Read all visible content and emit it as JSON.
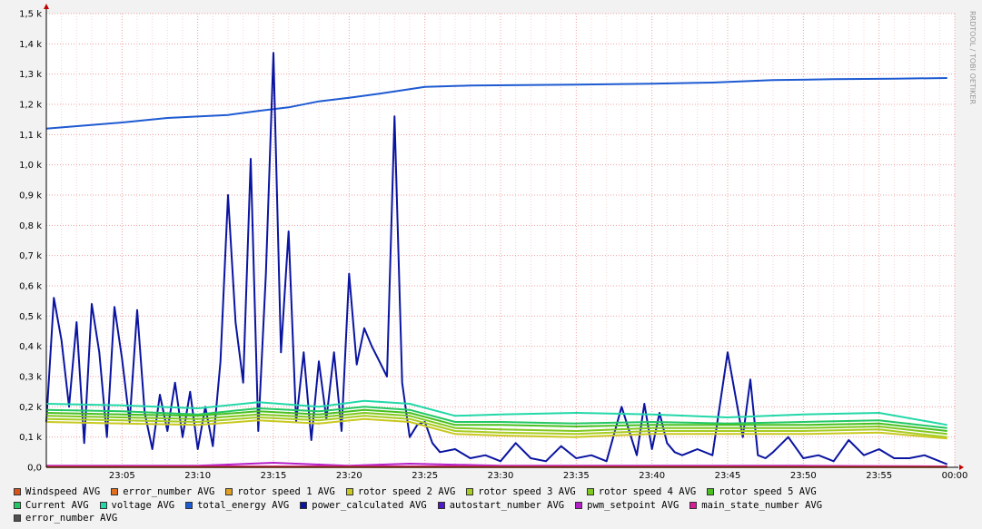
{
  "watermark": "RRDTOOL / TOBI OETIKER",
  "chart_data": {
    "type": "line",
    "title": "",
    "xlabel": "",
    "ylabel": "",
    "ylim": [
      0,
      1500
    ],
    "grid": true,
    "legend_position": "bottom",
    "y_ticks": [
      "0,0",
      "0,1 k",
      "0,2 k",
      "0,3 k",
      "0,4 k",
      "0,5 k",
      "0,6 k",
      "0,7 k",
      "0,8 k",
      "0,9 k",
      "1,0 k",
      "1,1 k",
      "1,2 k",
      "1,3 k",
      "1,4 k",
      "1,5 k"
    ],
    "x_ticks": [
      "23:05",
      "23:10",
      "23:15",
      "23:20",
      "23:25",
      "23:30",
      "23:35",
      "23:40",
      "23:45",
      "23:50",
      "23:55",
      "00:00"
    ],
    "x_range_minutes": [
      0,
      60
    ],
    "legend": [
      {
        "label": "Windspeed AVG",
        "color": "#d95319"
      },
      {
        "label": "error_number AVG",
        "color": "#e07020"
      },
      {
        "label": "rotor speed 1 AVG",
        "color": "#e0a020"
      },
      {
        "label": "rotor speed 2 AVG",
        "color": "#c8c820"
      },
      {
        "label": "rotor speed 3 AVG",
        "color": "#a8cc22"
      },
      {
        "label": "rotor speed 4 AVG",
        "color": "#80c820"
      },
      {
        "label": "rotor speed 5 AVG",
        "color": "#48c020"
      },
      {
        "label": "Current AVG",
        "color": "#22c864"
      },
      {
        "label": "voltage AVG",
        "color": "#22d8a8"
      },
      {
        "label": "total_energy AVG",
        "color": "#1e5ad2"
      },
      {
        "label": "power_calculated AVG",
        "color": "#0a14a0"
      },
      {
        "label": "autostart_number AVG",
        "color": "#5018c8"
      },
      {
        "label": "pwm_setpoint AVG",
        "color": "#b420c8"
      },
      {
        "label": "main_state_number AVG",
        "color": "#d81e96"
      },
      {
        "label": "error_number AVG",
        "color": "#505050"
      }
    ],
    "series": [
      {
        "name": "total_energy AVG",
        "color": "#1e5ad2",
        "x": [
          0,
          5,
          8,
          12,
          14,
          16,
          18,
          20,
          22,
          24,
          25,
          28,
          35,
          40,
          44,
          48,
          52,
          56,
          59.5
        ],
        "values": [
          1120,
          1140,
          1155,
          1165,
          1178,
          1190,
          1210,
          1222,
          1235,
          1250,
          1258,
          1262,
          1265,
          1268,
          1272,
          1280,
          1283,
          1285,
          1287
        ]
      },
      {
        "name": "power_calculated AVG",
        "color": "#0a14a0",
        "x": [
          0,
          0.5,
          1,
          1.5,
          2,
          2.5,
          3,
          3.5,
          4,
          4.5,
          5,
          5.5,
          6,
          6.5,
          7,
          7.5,
          8,
          8.5,
          9,
          9.5,
          10,
          10.5,
          11,
          11.5,
          12,
          12.5,
          13,
          13.5,
          14,
          14.5,
          15,
          15.5,
          16,
          16.5,
          17,
          17.5,
          18,
          18.5,
          19,
          19.5,
          20,
          20.5,
          21,
          21.5,
          22,
          22.5,
          23,
          23.5,
          24,
          24.5,
          25,
          25.5,
          26,
          27,
          28,
          29,
          30,
          31,
          32,
          33,
          34,
          35,
          36,
          37,
          38,
          39,
          39.5,
          40,
          40.5,
          41,
          41.5,
          42,
          43,
          44,
          45,
          46,
          46.5,
          47,
          47.5,
          48,
          49,
          50,
          51,
          52,
          53,
          54,
          55,
          56,
          57,
          58,
          59,
          59.5
        ],
        "values": [
          150,
          560,
          420,
          200,
          480,
          80,
          540,
          380,
          100,
          530,
          360,
          150,
          520,
          180,
          60,
          240,
          120,
          280,
          100,
          250,
          60,
          200,
          70,
          350,
          900,
          480,
          280,
          1020,
          120,
          640,
          1370,
          380,
          780,
          150,
          380,
          90,
          350,
          160,
          380,
          120,
          640,
          340,
          460,
          400,
          350,
          300,
          1160,
          280,
          100,
          140,
          150,
          80,
          50,
          60,
          30,
          40,
          20,
          80,
          30,
          20,
          70,
          30,
          40,
          20,
          200,
          40,
          210,
          60,
          180,
          80,
          50,
          40,
          60,
          40,
          380,
          100,
          290,
          40,
          30,
          50,
          100,
          30,
          40,
          20,
          90,
          40,
          60,
          30,
          30,
          40,
          20,
          10
        ]
      },
      {
        "name": "voltage AVG",
        "color": "#22d8a8",
        "x": [
          0,
          5,
          10,
          14,
          18,
          21,
          24,
          27,
          30,
          35,
          40,
          45,
          50,
          55,
          59.5
        ],
        "values": [
          210,
          205,
          195,
          215,
          200,
          220,
          210,
          170,
          175,
          180,
          175,
          165,
          175,
          180,
          140
        ]
      },
      {
        "name": "Current AVG",
        "color": "#22c864",
        "x": [
          0,
          5,
          10,
          14,
          18,
          21,
          24,
          27,
          30,
          35,
          40,
          45,
          50,
          55,
          59.5
        ],
        "values": [
          190,
          185,
          175,
          195,
          185,
          200,
          190,
          150,
          150,
          145,
          150,
          145,
          150,
          155,
          130
        ]
      },
      {
        "name": "rotor speed 5 AVG",
        "color": "#48c020",
        "x": [
          0,
          5,
          10,
          14,
          18,
          21,
          24,
          27,
          30,
          35,
          40,
          45,
          50,
          55,
          59.5
        ],
        "values": [
          180,
          175,
          170,
          185,
          175,
          190,
          180,
          140,
          140,
          135,
          140,
          140,
          140,
          145,
          120
        ]
      },
      {
        "name": "rotor speed 4 AVG",
        "color": "#80c820",
        "x": [
          0,
          5,
          10,
          14,
          18,
          21,
          24,
          27,
          30,
          35,
          40,
          45,
          50,
          55,
          59.5
        ],
        "values": [
          170,
          165,
          160,
          175,
          165,
          180,
          170,
          130,
          125,
          120,
          130,
          130,
          130,
          135,
          110
        ]
      },
      {
        "name": "rotor speed 3 AVG",
        "color": "#a8cc22",
        "x": [
          0,
          5,
          10,
          14,
          18,
          21,
          24,
          27,
          30,
          35,
          40,
          45,
          50,
          55,
          59.5
        ],
        "values": [
          160,
          155,
          150,
          165,
          155,
          170,
          160,
          120,
          115,
          110,
          120,
          120,
          120,
          125,
          100
        ]
      },
      {
        "name": "rotor speed 2 AVG",
        "color": "#c8c820",
        "x": [
          0,
          5,
          10,
          14,
          18,
          21,
          24,
          27,
          30,
          35,
          40,
          45,
          50,
          55,
          59.5
        ],
        "values": [
          150,
          145,
          140,
          155,
          145,
          160,
          150,
          110,
          105,
          100,
          110,
          110,
          110,
          115,
          95
        ]
      },
      {
        "name": "pwm_setpoint AVG",
        "color": "#b420c8",
        "x": [
          0,
          10,
          15,
          20,
          24,
          30,
          40,
          50,
          59.5
        ],
        "values": [
          5,
          5,
          15,
          5,
          12,
          5,
          5,
          5,
          3
        ]
      },
      {
        "name": "main_state_number AVG",
        "color": "#d81e96",
        "x": [
          0,
          59.5
        ],
        "values": [
          3,
          3
        ]
      },
      {
        "name": "Windspeed AVG",
        "color": "#d95319",
        "x": [
          0,
          59.5
        ],
        "values": [
          1,
          1
        ]
      }
    ]
  }
}
